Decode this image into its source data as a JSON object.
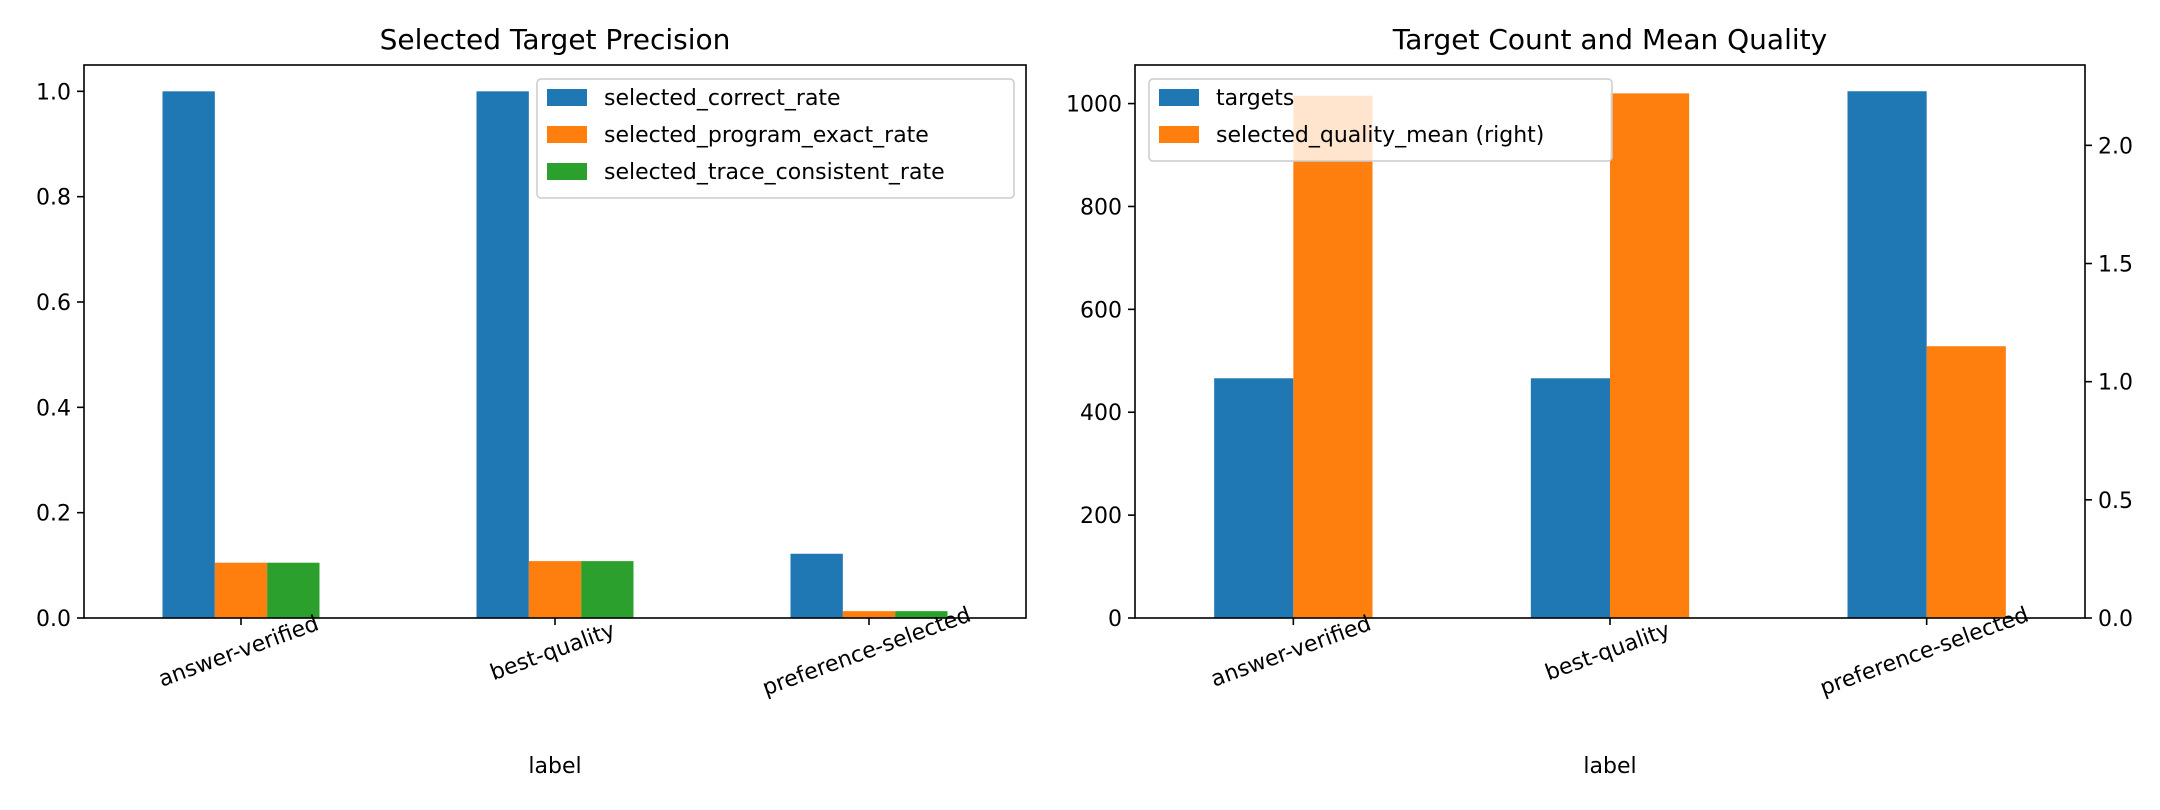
{
  "chart_data": [
    {
      "type": "bar",
      "title": "Selected Target Precision",
      "xlabel": "label",
      "ylabel": "",
      "categories": [
        "answer-verified",
        "best-quality",
        "preference-selected"
      ],
      "ylim": [
        0,
        1.05
      ],
      "yticks": [
        0.0,
        0.2,
        0.4,
        0.6,
        0.8,
        1.0
      ],
      "ytick_labels": [
        "0.0",
        "0.2",
        "0.4",
        "0.6",
        "0.8",
        "1.0"
      ],
      "legend_position": "top-right",
      "series": [
        {
          "name": "selected_correct_rate",
          "color": "#1f77b4",
          "values": [
            1.0,
            1.0,
            0.122
          ]
        },
        {
          "name": "selected_program_exact_rate",
          "color": "#ff7f0e",
          "values": [
            0.105,
            0.108,
            0.013
          ]
        },
        {
          "name": "selected_trace_consistent_rate",
          "color": "#2ca02c",
          "values": [
            0.105,
            0.108,
            0.013
          ]
        }
      ]
    },
    {
      "type": "bar",
      "title": "Target Count and Mean Quality",
      "xlabel": "label",
      "ylabel": "",
      "categories": [
        "answer-verified",
        "best-quality",
        "preference-selected"
      ],
      "ylim": [
        0,
        1075
      ],
      "yticks": [
        0,
        200,
        400,
        600,
        800,
        1000
      ],
      "ytick_labels": [
        "0",
        "200",
        "400",
        "600",
        "800",
        "1000"
      ],
      "y2lim": [
        0,
        2.34
      ],
      "y2ticks": [
        0.0,
        0.5,
        1.0,
        1.5,
        2.0
      ],
      "y2tick_labels": [
        "0.0",
        "0.5",
        "1.0",
        "1.5",
        "2.0"
      ],
      "legend_position": "top-left",
      "series": [
        {
          "name": "targets",
          "color": "#1f77b4",
          "axis": "left",
          "values": [
            466,
            466,
            1024
          ]
        },
        {
          "name": "selected_quality_mean (right)",
          "color": "#ff7f0e",
          "axis": "right",
          "values": [
            2.21,
            2.22,
            1.15
          ]
        }
      ]
    }
  ]
}
